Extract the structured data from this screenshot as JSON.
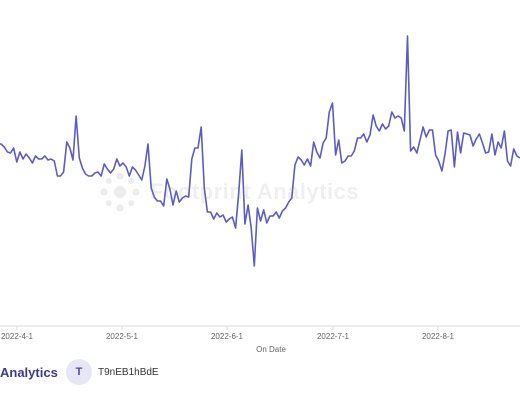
{
  "chart_data": {
    "type": "line",
    "xlabel": "On Date",
    "ylabel": "",
    "title": "",
    "x_tick_labels": [
      "2022-4-1",
      "2022-5-1",
      "2022-6-1",
      "2022-7-1",
      "2022-8-1"
    ],
    "y_axis_visible": false,
    "grid": false,
    "series": [
      {
        "color": "#5c5cc2",
        "values": [
          126,
          126,
          129,
          134,
          135,
          130,
          144,
          134,
          141,
          136,
          140,
          145,
          138,
          141,
          141,
          138,
          142,
          141,
          143,
          158,
          158,
          154,
          124,
          130,
          142,
          98,
          140,
          150,
          156,
          158,
          158,
          155,
          154,
          158,
          146,
          151,
          155,
          151,
          141,
          148,
          145,
          149,
          158,
          149,
          152,
          157,
          162,
          148,
          126,
          170,
          179,
          183,
          183,
          188,
          161,
          171,
          187,
          173,
          184,
          180,
          178,
          179,
          141,
          130,
          130,
          109,
          170,
          194,
          194,
          201,
          195,
          199,
          197,
          204,
          201,
          199,
          210,
          175,
          132,
          206,
          187,
          210,
          248,
          190,
          203,
          192,
          205,
          198,
          198,
          194,
          200,
          193,
          190,
          184,
          180,
          147,
          139,
          142,
          147,
          141,
          148,
          124,
          134,
          140,
          125,
          120,
          94,
          85,
          137,
          122,
          145,
          143,
          138,
          138,
          133,
          120,
          120,
          116,
          124,
          117,
          97,
          108,
          113,
          106,
          111,
          108,
          94,
          100,
          98,
          100,
          113,
          18,
          133,
          129,
          135,
          122,
          109,
          119,
          112,
          112,
          137,
          143,
          153,
          136,
          113,
          112,
          149,
          114,
          135,
          115,
          116,
          117,
          128,
          121,
          116,
          125,
          135,
          134,
          116,
          137,
          124,
          130,
          113,
          143,
          148,
          131,
          138,
          140
        ]
      }
    ]
  },
  "watermark": {
    "text": "Footprint Analytics"
  },
  "footer": {
    "brand_text": "Analytics",
    "avatar_letter": "T",
    "username": "T9nEB1hBdE"
  }
}
